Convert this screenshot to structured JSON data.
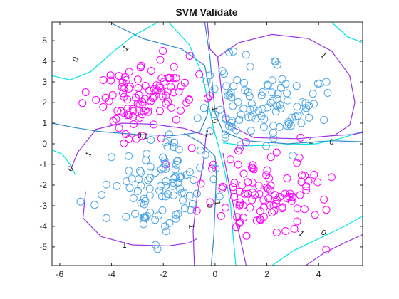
{
  "chart_data": {
    "type": "scatter",
    "title": "SVM Validate",
    "xlabel": "",
    "ylabel": "",
    "xlim": [
      -6.3,
      5.7
    ],
    "ylim": [
      -5.9,
      5.9
    ],
    "xticks": [
      -6,
      -4,
      -2,
      0,
      2,
      4
    ],
    "yticks": [
      -5,
      -4,
      -3,
      -2,
      -1,
      0,
      1,
      2,
      3,
      4,
      5
    ],
    "xtick_labels": [
      "-6",
      "-4",
      "-2",
      "0",
      "2",
      "4"
    ],
    "ytick_labels": [
      "-5",
      "-4",
      "-3",
      "-2",
      "-1",
      "0",
      "1",
      "2",
      "3",
      "4",
      "5"
    ],
    "grid": false,
    "marker": "open-circle",
    "series": [
      {
        "color": "#ff00ff",
        "clusters": [
          {
            "center": [
              -2.6,
              2.2
            ],
            "spread": [
              1.0,
              0.9
            ],
            "n": 100,
            "seed": 11
          },
          {
            "center": [
              2.0,
              -2.2
            ],
            "spread": [
              1.0,
              0.95
            ],
            "n": 100,
            "seed": 23
          }
        ],
        "stray_points": [
          [
            -1.9,
            -1.0
          ],
          [
            -0.9,
            -0.2
          ],
          [
            0.4,
            -3.1
          ],
          [
            3.3,
            0.3
          ],
          [
            -5.0,
            2.5
          ]
        ]
      },
      {
        "color": "#4da6e6",
        "clusters": [
          {
            "center": [
              1.8,
              2.0
            ],
            "spread": [
              1.05,
              0.95
            ],
            "n": 100,
            "seed": 37
          },
          {
            "center": [
              -2.0,
              -2.0
            ],
            "spread": [
              1.0,
              1.0
            ],
            "n": 100,
            "seed": 53
          }
        ],
        "stray_points": [
          [
            0.4,
            0.3
          ],
          [
            -0.2,
            0.6
          ],
          [
            2.3,
            4.0
          ],
          [
            4.3,
            3.0
          ],
          [
            -4.2,
            -3.6
          ],
          [
            -5.2,
            -2.8
          ],
          [
            -2.3,
            -4.9
          ]
        ]
      }
    ],
    "contours": [
      {
        "level": 0,
        "color": "#2e88c8",
        "lines": [
          [
            [
              -4.1,
              5.9
            ],
            [
              -2.8,
              5.1
            ],
            [
              -1.3,
              4.6
            ],
            [
              -0.4,
              3.8
            ],
            [
              -0.2,
              2.5
            ],
            [
              -0.3,
              1.4
            ],
            [
              -0.6,
              0.55
            ],
            [
              -1.6,
              0.4
            ],
            [
              -3.0,
              0.45
            ],
            [
              -4.5,
              0.6
            ],
            [
              -5.5,
              0.8
            ],
            [
              -6.3,
              1.0
            ]
          ],
          [
            [
              5.7,
              0.1
            ],
            [
              4.5,
              0.15
            ],
            [
              2.8,
              0.0
            ],
            [
              1.2,
              0.15
            ],
            [
              0.3,
              0.6
            ],
            [
              0.0,
              1.5
            ],
            [
              -0.1,
              2.8
            ],
            [
              -0.2,
              4.2
            ],
            [
              -0.4,
              5.9
            ]
          ],
          [
            [
              -0.15,
              -5.9
            ],
            [
              -0.05,
              -4.5
            ],
            [
              0.0,
              -3.0
            ],
            [
              0.05,
              -1.5
            ],
            [
              0.0,
              -0.6
            ],
            [
              -0.6,
              0.1
            ],
            [
              -1.2,
              0.5
            ]
          ]
        ]
      },
      {
        "level": -1,
        "color": "#00e5e5",
        "lines": [
          [
            [
              -6.3,
              3.3
            ],
            [
              -5.6,
              3.1
            ],
            [
              -4.8,
              3.5
            ],
            [
              -4.0,
              4.4
            ],
            [
              -3.2,
              5.2
            ],
            [
              -2.2,
              5.9
            ]
          ],
          [
            [
              -1.8,
              5.9
            ],
            [
              -1.0,
              4.8
            ],
            [
              -0.5,
              3.4
            ],
            [
              -0.2,
              1.6
            ],
            [
              -0.05,
              0.7
            ],
            [
              0.15,
              -0.2
            ],
            [
              0.4,
              -1.5
            ],
            [
              0.6,
              -3.0
            ],
            [
              0.7,
              -4.5
            ],
            [
              0.8,
              -5.9
            ]
          ],
          [
            [
              0.3,
              0.05
            ],
            [
              1.2,
              -0.1
            ],
            [
              2.6,
              -0.05
            ],
            [
              3.9,
              0.0
            ],
            [
              4.8,
              0.25
            ],
            [
              5.7,
              0.6
            ]
          ],
          [
            [
              -6.3,
              -0.3
            ],
            [
              -5.9,
              -0.5
            ],
            [
              -5.6,
              -1.0
            ],
            [
              -5.4,
              -1.5
            ]
          ],
          [
            [
              2.2,
              -5.9
            ],
            [
              3.0,
              -5.2
            ],
            [
              4.0,
              -4.6
            ],
            [
              5.0,
              -4.0
            ],
            [
              5.7,
              -3.5
            ]
          ],
          [
            [
              4.5,
              5.9
            ],
            [
              5.1,
              5.2
            ],
            [
              5.7,
              4.9
            ]
          ]
        ]
      },
      {
        "level": 1,
        "color": "#9933e6",
        "lines": [
          [
            [
              -5.6,
              -1.3
            ],
            [
              -5.3,
              -0.4
            ],
            [
              -4.6,
              0.7
            ],
            [
              -3.6,
              1.0
            ],
            [
              -2.4,
              0.95
            ],
            [
              -1.2,
              0.75
            ],
            [
              -0.35,
              0.4
            ],
            [
              -0.45,
              -0.9
            ],
            [
              -0.7,
              -2.6
            ],
            [
              -0.85,
              -4.2
            ],
            [
              -0.8,
              -5.9
            ]
          ],
          [
            [
              -5.0,
              -2.3
            ],
            [
              -5.1,
              -3.6
            ],
            [
              -4.4,
              -4.5
            ],
            [
              -3.2,
              -4.9
            ],
            [
              -1.8,
              -4.95
            ],
            [
              -1.0,
              -4.8
            ],
            [
              -0.7,
              -4.6
            ]
          ],
          [
            [
              0.1,
              4.2
            ],
            [
              0.25,
              2.5
            ],
            [
              0.45,
              0.95
            ],
            [
              1.5,
              0.3
            ],
            [
              3.2,
              0.25
            ],
            [
              4.6,
              0.4
            ],
            [
              5.2,
              0.9
            ],
            [
              5.4,
              2.0
            ],
            [
              5.2,
              3.3
            ],
            [
              4.5,
              4.5
            ],
            [
              3.6,
              5.1
            ],
            [
              2.2,
              5.3
            ],
            [
              0.9,
              4.9
            ],
            [
              0.1,
              4.2
            ]
          ],
          [
            [
              -0.3,
              5.9
            ],
            [
              -0.2,
              4.6
            ],
            [
              0.1,
              4.2
            ]
          ],
          [
            [
              5.7,
              0.55
            ],
            [
              5.3,
              0.45
            ],
            [
              4.6,
              0.4
            ]
          ],
          [
            [
              0.3,
              -0.45
            ],
            [
              0.55,
              -2.0
            ],
            [
              0.85,
              -3.9
            ],
            [
              1.2,
              -5.9
            ]
          ],
          [
            [
              3.5,
              -5.9
            ],
            [
              4.2,
              -5.3
            ],
            [
              5.0,
              -4.8
            ],
            [
              5.7,
              -4.4
            ]
          ]
        ]
      }
    ],
    "contour_labels": [
      {
        "text": "0",
        "x": -5.4,
        "y": 4.1,
        "angle": -55
      },
      {
        "text": "-1",
        "x": -3.5,
        "y": 4.6,
        "angle": -45
      },
      {
        "text": "1",
        "x": 4.2,
        "y": 4.3,
        "angle": 40
      },
      {
        "text": "1",
        "x": 0.0,
        "y": 1.7,
        "angle": 80
      },
      {
        "text": "0",
        "x": 0.0,
        "y": 1.1,
        "angle": 80
      },
      {
        "text": "-1",
        "x": -0.25,
        "y": 0.5,
        "angle": 85
      },
      {
        "text": "0.1",
        "x": -2.8,
        "y": 0.4,
        "angle": 5
      },
      {
        "text": "1",
        "x": -1.7,
        "y": 0.1,
        "angle": 10
      },
      {
        "text": "1",
        "x": 3.7,
        "y": 0.15,
        "angle": 0
      },
      {
        "text": "0",
        "x": 4.5,
        "y": 0.1,
        "angle": 5
      },
      {
        "text": "1",
        "x": -4.9,
        "y": -0.5,
        "angle": -60
      },
      {
        "text": "0",
        "x": -5.6,
        "y": -1.2,
        "angle": -45
      },
      {
        "text": "-1",
        "x": 0.1,
        "y": -2.8,
        "angle": 85
      },
      {
        "text": "0",
        "x": -0.2,
        "y": -3.0,
        "angle": 85
      },
      {
        "text": "1",
        "x": -0.9,
        "y": -4.0,
        "angle": 85
      },
      {
        "text": "1",
        "x": -3.5,
        "y": -4.9,
        "angle": 0
      },
      {
        "text": "-1",
        "x": 3.3,
        "y": -4.3,
        "angle": 40
      },
      {
        "text": "0",
        "x": 4.2,
        "y": -4.3,
        "angle": 35
      }
    ]
  }
}
